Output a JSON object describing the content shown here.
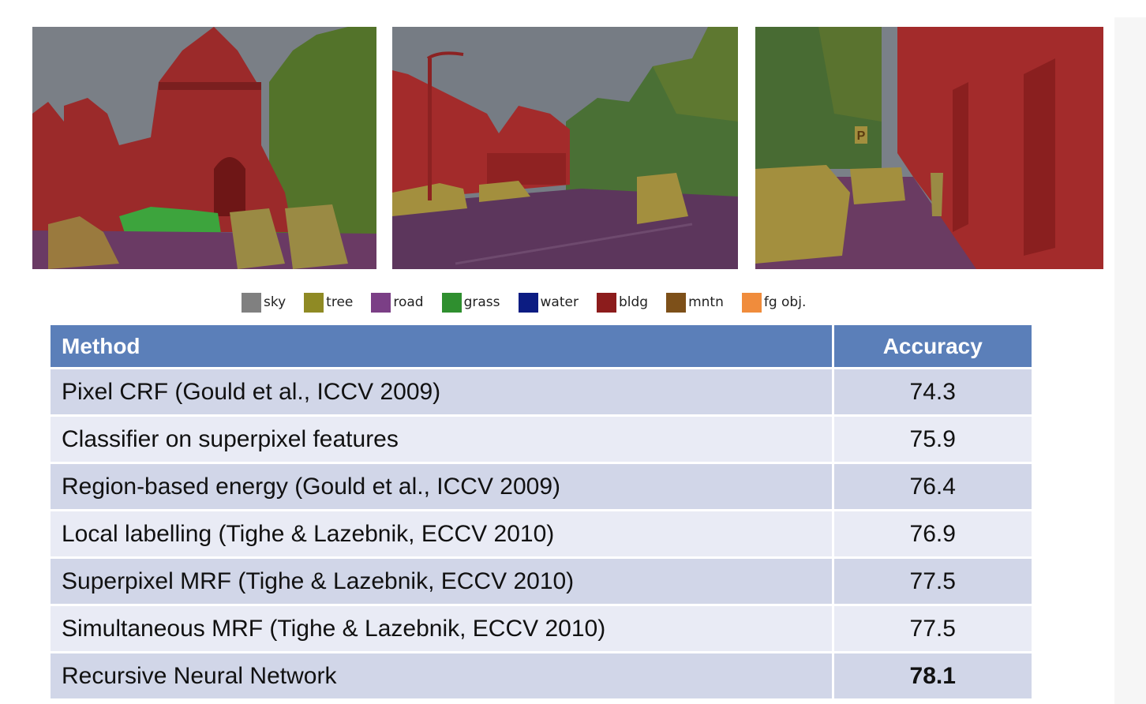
{
  "colors": {
    "sky": "#808080",
    "tree": "#8f8a24",
    "road": "#7b3f86",
    "grass": "#2f8f2f",
    "water": "#0c1c82",
    "bldg": "#8c1c1c",
    "mntn": "#7d5019",
    "fg_obj": "#f08c3c",
    "header_bg": "#5b7fb9",
    "row_dark": "#d1d6e8",
    "row_light": "#e9ebf5"
  },
  "scenes": [
    {
      "name": "scene-church",
      "sign_text": ""
    },
    {
      "name": "scene-street",
      "sign_text": ""
    },
    {
      "name": "scene-sidewalk",
      "sign_text": "P"
    }
  ],
  "legend": [
    {
      "label": "sky",
      "color": "#808080"
    },
    {
      "label": "tree",
      "color": "#8f8a24"
    },
    {
      "label": "road",
      "color": "#7b3f86"
    },
    {
      "label": "grass",
      "color": "#2f8f2f"
    },
    {
      "label": "water",
      "color": "#0c1c82"
    },
    {
      "label": "bldg",
      "color": "#8c1c1c"
    },
    {
      "label": "mntn",
      "color": "#7d5019"
    },
    {
      "label": "fg obj.",
      "color": "#f08c3c"
    }
  ],
  "table": {
    "headers": {
      "method": "Method",
      "accuracy": "Accuracy"
    },
    "rows": [
      {
        "method": "Pixel CRF (Gould et al., ICCV 2009)",
        "accuracy": "74.3"
      },
      {
        "method": "Classifier on superpixel features",
        "accuracy": "75.9"
      },
      {
        "method": "Region-based energy (Gould et al., ICCV 2009)",
        "accuracy": "76.4"
      },
      {
        "method": "Local labelling (Tighe & Lazebnik, ECCV 2010)",
        "accuracy": "76.9"
      },
      {
        "method": "Superpixel MRF (Tighe & Lazebnik, ECCV 2010)",
        "accuracy": "77.5"
      },
      {
        "method": "Simultaneous MRF (Tighe & Lazebnik, ECCV 2010)",
        "accuracy": "77.5"
      },
      {
        "method": "Recursive Neural Network",
        "accuracy": "78.1"
      }
    ]
  }
}
